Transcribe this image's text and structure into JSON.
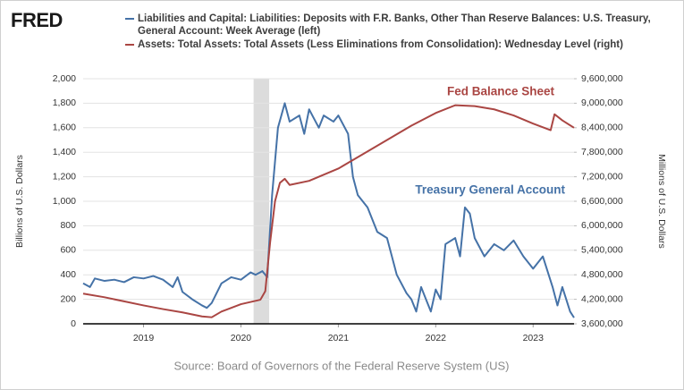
{
  "logo": "FRED",
  "chart_data": {
    "type": "line",
    "source": "Source: Board of Governors of the Federal Reserve System (US)",
    "y_label": "Billions of U.S. Dollars",
    "y2_label": "Millions of U.S. Dollars",
    "annotations": [
      "Fed Balance Sheet",
      "Treasury General Account"
    ],
    "xlim": [
      2018.38,
      2023.42
    ],
    "xticks": [
      2019,
      2020,
      2021,
      2022,
      2023
    ],
    "ylim": [
      0,
      2000
    ],
    "yticks": [
      0,
      200,
      400,
      600,
      800,
      {
        "value": 1000,
        "label": "1,000"
      },
      {
        "value": 1200,
        "label": "1,200"
      },
      {
        "value": 1400,
        "label": "1,400"
      },
      {
        "value": 1600,
        "label": "1,600"
      },
      {
        "value": 1800,
        "label": "1,800"
      },
      {
        "value": 2000,
        "label": "2,000"
      }
    ],
    "y2lim": [
      3600000,
      9600000
    ],
    "y2ticks": [
      {
        "value": 3600000,
        "label": "3,600,000"
      },
      {
        "value": 4200000,
        "label": "4,200,000"
      },
      {
        "value": 4800000,
        "label": "4,800,000"
      },
      {
        "value": 5400000,
        "label": "5,400,000"
      },
      {
        "value": 6000000,
        "label": "6,000,000"
      },
      {
        "value": 6600000,
        "label": "6,600,000"
      },
      {
        "value": 7200000,
        "label": "7,200,000"
      },
      {
        "value": 7800000,
        "label": "7,800,000"
      },
      {
        "value": 8400000,
        "label": "8,400,000"
      },
      {
        "value": 9000000,
        "label": "9,000,000"
      },
      {
        "value": 9600000,
        "label": "9,600,000"
      }
    ],
    "grid": true,
    "recession_shading": [
      2020.13,
      2020.29
    ],
    "recession_color": "#dcdcdc",
    "series": [
      {
        "name": "Liabilities and Capital: Liabilities: Deposits with F.R. Banks, Other Than Reserve Balances: U.S. Treasury, General Account: Week Average (left)",
        "color": "#4572a7",
        "axis": "y",
        "x": [
          2018.38,
          2018.45,
          2018.5,
          2018.6,
          2018.7,
          2018.8,
          2018.9,
          2019.0,
          2019.1,
          2019.2,
          2019.3,
          2019.35,
          2019.4,
          2019.5,
          2019.6,
          2019.65,
          2019.7,
          2019.8,
          2019.9,
          2020.0,
          2020.1,
          2020.15,
          2020.22,
          2020.27,
          2020.32,
          2020.38,
          2020.45,
          2020.5,
          2020.6,
          2020.65,
          2020.7,
          2020.8,
          2020.85,
          2020.95,
          2021.0,
          2021.1,
          2021.15,
          2021.2,
          2021.3,
          2021.4,
          2021.5,
          2021.55,
          2021.6,
          2021.7,
          2021.75,
          2021.8,
          2021.85,
          2021.9,
          2021.95,
          2022.0,
          2022.05,
          2022.1,
          2022.2,
          2022.25,
          2022.3,
          2022.35,
          2022.4,
          2022.5,
          2022.6,
          2022.7,
          2022.8,
          2022.9,
          2023.0,
          2023.1,
          2023.2,
          2023.25,
          2023.3,
          2023.38,
          2023.42
        ],
        "values": [
          330,
          300,
          370,
          350,
          360,
          340,
          380,
          370,
          390,
          360,
          300,
          380,
          260,
          200,
          150,
          130,
          170,
          330,
          380,
          360,
          420,
          400,
          430,
          380,
          1050,
          1600,
          1800,
          1650,
          1700,
          1550,
          1750,
          1600,
          1700,
          1650,
          1700,
          1550,
          1200,
          1050,
          950,
          750,
          700,
          550,
          400,
          250,
          200,
          100,
          300,
          200,
          100,
          280,
          200,
          650,
          700,
          550,
          950,
          900,
          700,
          550,
          650,
          600,
          680,
          550,
          450,
          550,
          300,
          150,
          300,
          100,
          50
        ]
      },
      {
        "name": "Assets: Total Assets: Total Assets (Less Eliminations from Consolidation): Wednesday Level (right)",
        "color": "#aa4643",
        "axis": "y2",
        "x": [
          2018.38,
          2018.6,
          2018.8,
          2019.0,
          2019.2,
          2019.4,
          2019.6,
          2019.7,
          2019.8,
          2020.0,
          2020.2,
          2020.25,
          2020.3,
          2020.35,
          2020.4,
          2020.45,
          2020.5,
          2020.7,
          2021.0,
          2021.25,
          2021.5,
          2021.75,
          2022.0,
          2022.2,
          2022.4,
          2022.6,
          2022.8,
          2023.0,
          2023.18,
          2023.22,
          2023.3,
          2023.42
        ],
        "values": [
          4340000,
          4250000,
          4150000,
          4050000,
          3960000,
          3880000,
          3780000,
          3760000,
          3900000,
          4080000,
          4190000,
          4400000,
          5600000,
          6600000,
          7050000,
          7150000,
          7000000,
          7100000,
          7400000,
          7750000,
          8100000,
          8450000,
          8760000,
          8950000,
          8930000,
          8850000,
          8700000,
          8500000,
          8340000,
          8730000,
          8580000,
          8400000
        ]
      }
    ]
  }
}
